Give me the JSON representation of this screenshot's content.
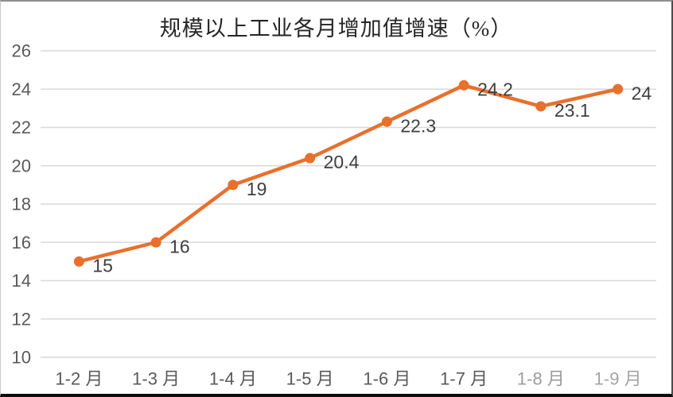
{
  "chart_data": {
    "type": "line",
    "title": "规模以上工业各月增加值增速（%）",
    "categories": [
      "1-2 月",
      "1-3 月",
      "1-4 月",
      "1-5 月",
      "1-6 月",
      "1-7 月",
      "1-8 月",
      "1-9 月"
    ],
    "values": [
      15,
      16,
      19,
      20.4,
      22.3,
      24.2,
      23.1,
      24
    ],
    "data_labels": [
      "15",
      "16",
      "19",
      "20.4",
      "22.3",
      "24.2",
      "23.1",
      "24"
    ],
    "xlabel": "",
    "ylabel": "",
    "ylim": [
      10,
      26
    ],
    "yticks": [
      10,
      12,
      14,
      16,
      18,
      20,
      22,
      24,
      26
    ],
    "grid": true,
    "legend_position": "none",
    "data_label_position": "right",
    "colors": {
      "line": "#E8702D",
      "marker": "#E8702D",
      "gridline": "#D9D9D9",
      "axis_text": "#595959",
      "data_label_text": "#3F3F3F",
      "title_text": "#262626"
    }
  }
}
